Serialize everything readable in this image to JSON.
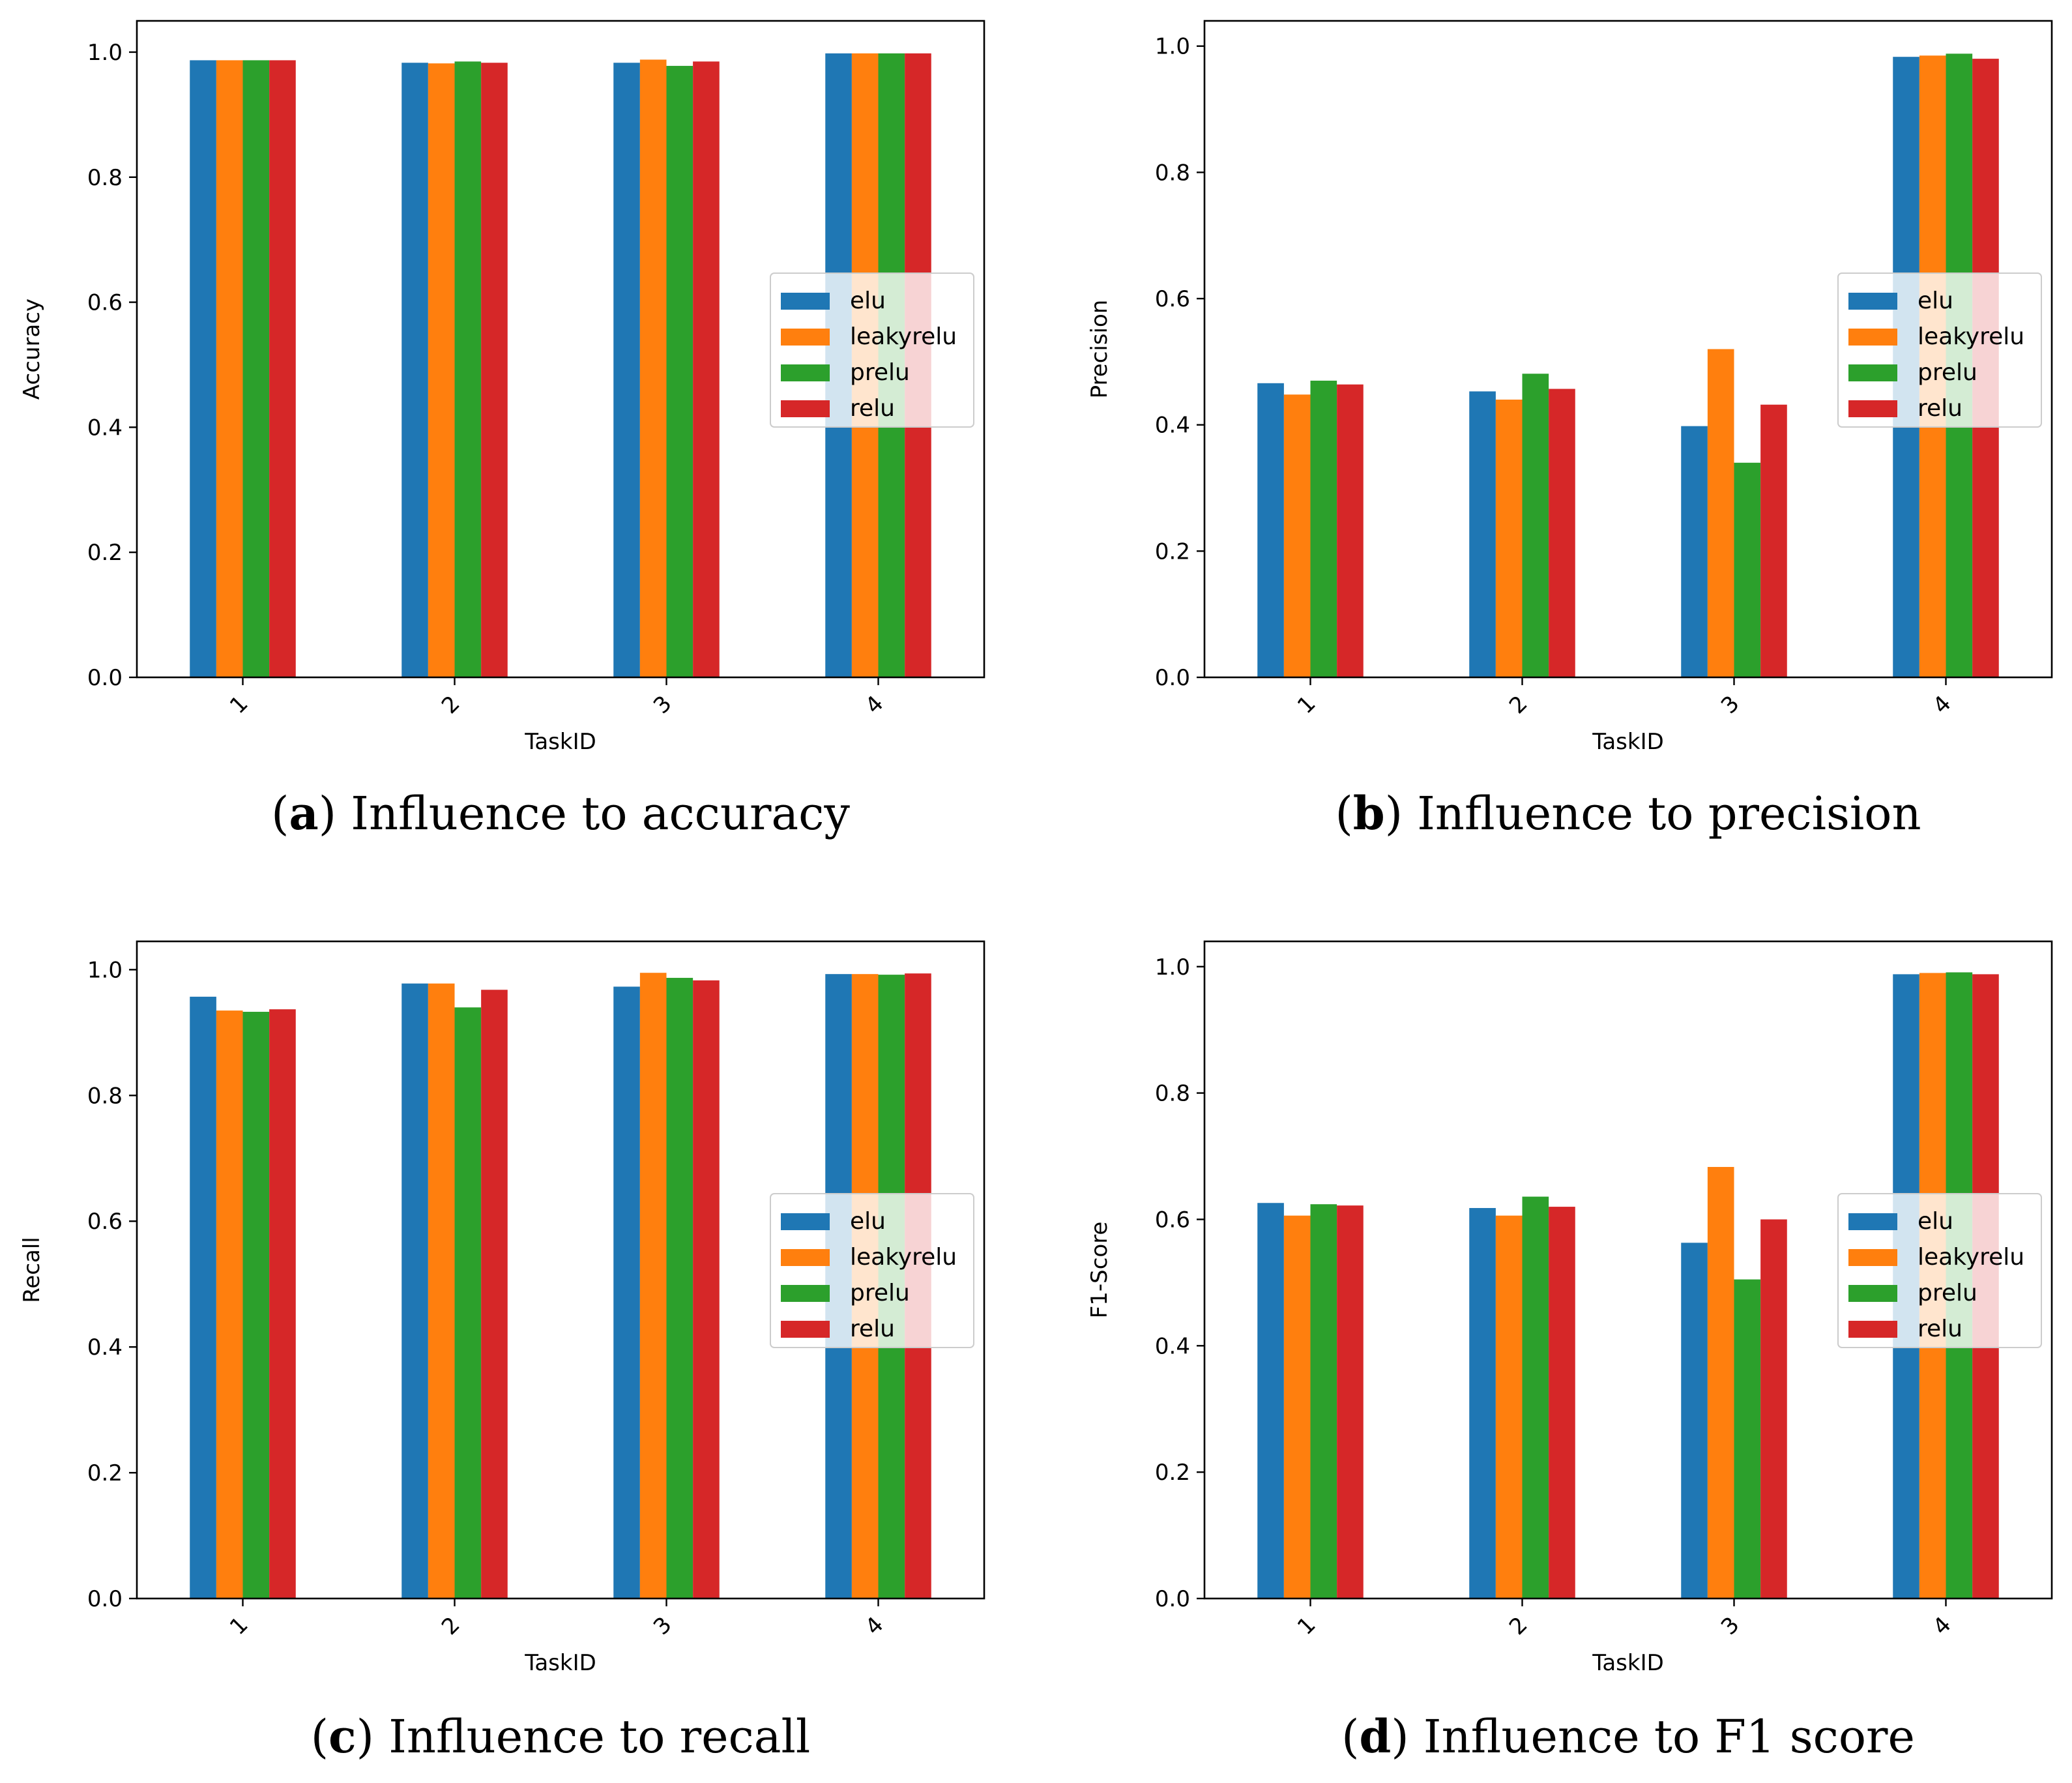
{
  "series_colors": {
    "elu": "#1f77b4",
    "leakyrelu": "#ff7f0e",
    "prelu": "#2ca02c",
    "relu": "#d62728"
  },
  "chart_data": [
    {
      "type": "bar",
      "title": "",
      "caption_letter": "a",
      "caption_text": "Influence to accuracy",
      "xlabel": "TaskID",
      "ylabel": "Accuracy",
      "ylim": [
        0,
        1.05
      ],
      "yticks": [
        "0.0",
        "0.2",
        "0.4",
        "0.6",
        "0.8",
        "1.0"
      ],
      "legend_position": "center-right",
      "categories": [
        "1",
        "2",
        "3",
        "4"
      ],
      "series": [
        {
          "name": "elu",
          "values": [
            0.987,
            0.983,
            0.983,
            0.998
          ]
        },
        {
          "name": "leakyrelu",
          "values": [
            0.987,
            0.982,
            0.988,
            0.998
          ]
        },
        {
          "name": "prelu",
          "values": [
            0.987,
            0.985,
            0.978,
            0.998
          ]
        },
        {
          "name": "relu",
          "values": [
            0.987,
            0.983,
            0.985,
            0.998
          ]
        }
      ]
    },
    {
      "type": "bar",
      "title": "",
      "caption_letter": "b",
      "caption_text": "Influence to precision",
      "xlabel": "TaskID",
      "ylabel": "Precision",
      "ylim": [
        0,
        1.04
      ],
      "yticks": [
        "0.0",
        "0.2",
        "0.4",
        "0.6",
        "0.8",
        "1.0"
      ],
      "legend_position": "center-right",
      "categories": [
        "1",
        "2",
        "3",
        "4"
      ],
      "series": [
        {
          "name": "elu",
          "values": [
            0.466,
            0.453,
            0.398,
            0.983
          ]
        },
        {
          "name": "leakyrelu",
          "values": [
            0.448,
            0.44,
            0.52,
            0.985
          ]
        },
        {
          "name": "prelu",
          "values": [
            0.47,
            0.481,
            0.34,
            0.988
          ]
        },
        {
          "name": "relu",
          "values": [
            0.464,
            0.457,
            0.432,
            0.98
          ]
        }
      ]
    },
    {
      "type": "bar",
      "title": "",
      "caption_letter": "c",
      "caption_text": "Influence to recall",
      "xlabel": "TaskID",
      "ylabel": "Recall",
      "ylim": [
        0,
        1.045
      ],
      "yticks": [
        "0.0",
        "0.2",
        "0.4",
        "0.6",
        "0.8",
        "1.0"
      ],
      "legend_position": "center-right",
      "categories": [
        "1",
        "2",
        "3",
        "4"
      ],
      "series": [
        {
          "name": "elu",
          "values": [
            0.957,
            0.978,
            0.973,
            0.993
          ]
        },
        {
          "name": "leakyrelu",
          "values": [
            0.935,
            0.978,
            0.995,
            0.993
          ]
        },
        {
          "name": "prelu",
          "values": [
            0.933,
            0.94,
            0.987,
            0.992
          ]
        },
        {
          "name": "relu",
          "values": [
            0.937,
            0.968,
            0.983,
            0.994
          ]
        }
      ]
    },
    {
      "type": "bar",
      "title": "",
      "caption_letter": "d",
      "caption_text": "Influence to F1 score",
      "xlabel": "TaskID",
      "ylabel": "F1-Score",
      "ylim": [
        0,
        1.04
      ],
      "yticks": [
        "0.0",
        "0.2",
        "0.4",
        "0.6",
        "0.8",
        "1.0"
      ],
      "legend_position": "center-right",
      "categories": [
        "1",
        "2",
        "3",
        "4"
      ],
      "series": [
        {
          "name": "elu",
          "values": [
            0.626,
            0.618,
            0.563,
            0.988
          ]
        },
        {
          "name": "leakyrelu",
          "values": [
            0.606,
            0.606,
            0.683,
            0.99
          ]
        },
        {
          "name": "prelu",
          "values": [
            0.624,
            0.636,
            0.505,
            0.991
          ]
        },
        {
          "name": "relu",
          "values": [
            0.622,
            0.62,
            0.6,
            0.988
          ]
        }
      ]
    }
  ]
}
